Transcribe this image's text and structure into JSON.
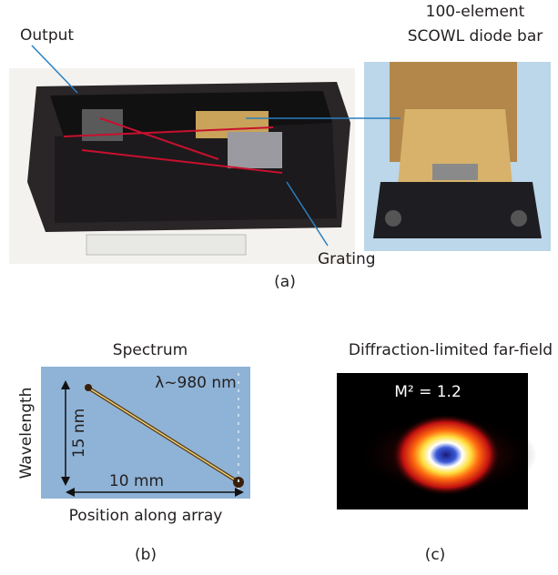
{
  "panels": [
    {
      "tag": "(a)",
      "labels": {
        "output": "Output",
        "bar_line1": "100-element",
        "bar_line2": "SCOWL diode bar",
        "grating": "Grating"
      }
    },
    {
      "tag": "(b)",
      "title": "Spectrum",
      "wavelength": "λ~980 nm",
      "y_label": "Wavelength",
      "y_span": "15 nm",
      "x_span": "10 mm",
      "x_label": "Position along array"
    },
    {
      "tag": "(c)",
      "title": "Diffraction-limited far-field",
      "m2": "M² = 1.2"
    }
  ]
}
